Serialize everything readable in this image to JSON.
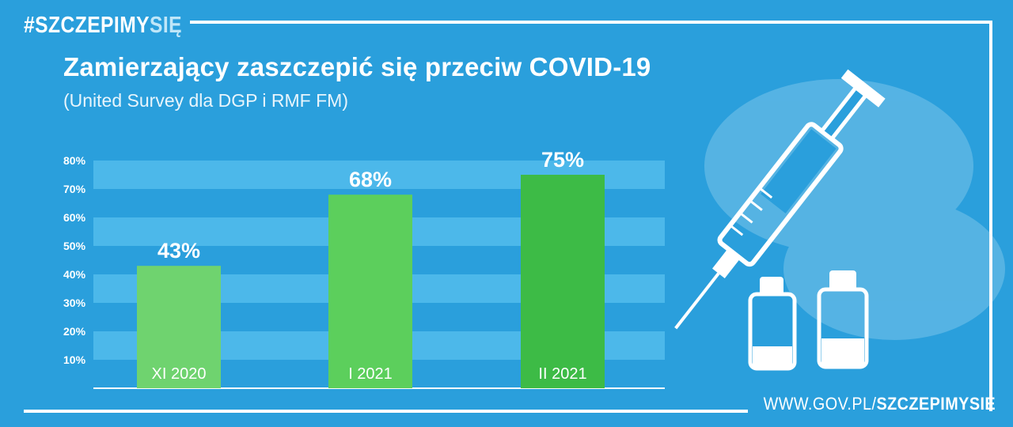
{
  "header": {
    "hashtag_main": "#SZCZEPIMY",
    "hashtag_accent": "SIĘ",
    "title": "Zamierzający zaszczepić się przeciw COVID-19",
    "subtitle": "(United Survey dla DGP i RMF FM)"
  },
  "footer": {
    "url_main": "WWW.GOV.PL/",
    "url_bold": "SZCZEPIMYSIE"
  },
  "colors": {
    "background": "#2a9fdc",
    "band": "#4cb8ea",
    "bar_1": "#6fd36f",
    "bar_2": "#5ccf5c",
    "bar_3": "#3dbb46",
    "text": "#ffffff"
  },
  "icons": [
    "syringe-icon",
    "vial-icon",
    "vial-icon"
  ],
  "chart_data": {
    "type": "bar",
    "categories": [
      "XI 2020",
      "I 2021",
      "II 2021"
    ],
    "values": [
      43,
      68,
      75
    ],
    "value_labels": [
      "43%",
      "68%",
      "75%"
    ],
    "yticks": [
      "10%",
      "20%",
      "30%",
      "40%",
      "50%",
      "60%",
      "70%",
      "80%"
    ],
    "ylim": [
      0,
      80
    ],
    "grid": true,
    "legend": "none",
    "title": "Zamierzający zaszczepić się przeciw COVID-19",
    "subtitle": "(United Survey dla DGP i RMF FM)"
  }
}
